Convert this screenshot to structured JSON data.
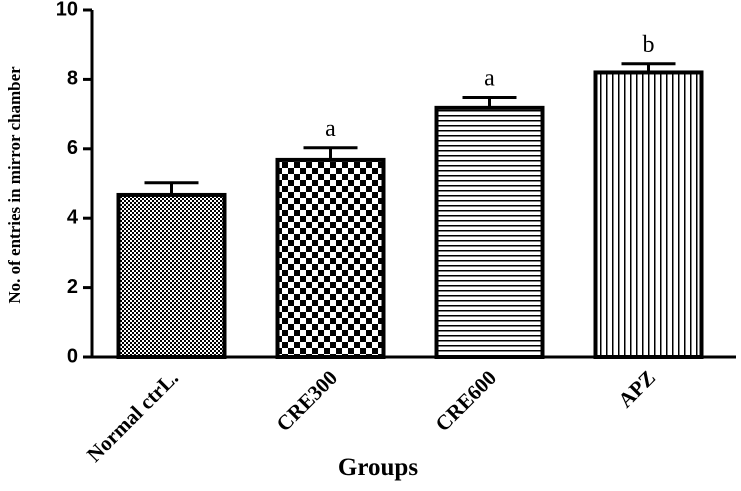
{
  "chart_data": {
    "type": "bar",
    "x_label": "Groups",
    "y_label": "No. of entries in mirror chamber",
    "categories": [
      "Normal ctrL.",
      "CRE300",
      "CRE600",
      "APZ"
    ],
    "values": [
      4.67,
      5.68,
      7.18,
      8.2
    ],
    "errors": [
      0.35,
      0.35,
      0.3,
      0.25
    ],
    "annotations": [
      null,
      "a",
      "a",
      "b"
    ],
    "patterns": [
      "dots",
      "checker",
      "horizontal",
      "vertical"
    ],
    "color": "#000000",
    "ylim": [
      0,
      10
    ],
    "yticks": [
      0,
      2,
      4,
      6,
      8,
      10
    ]
  }
}
